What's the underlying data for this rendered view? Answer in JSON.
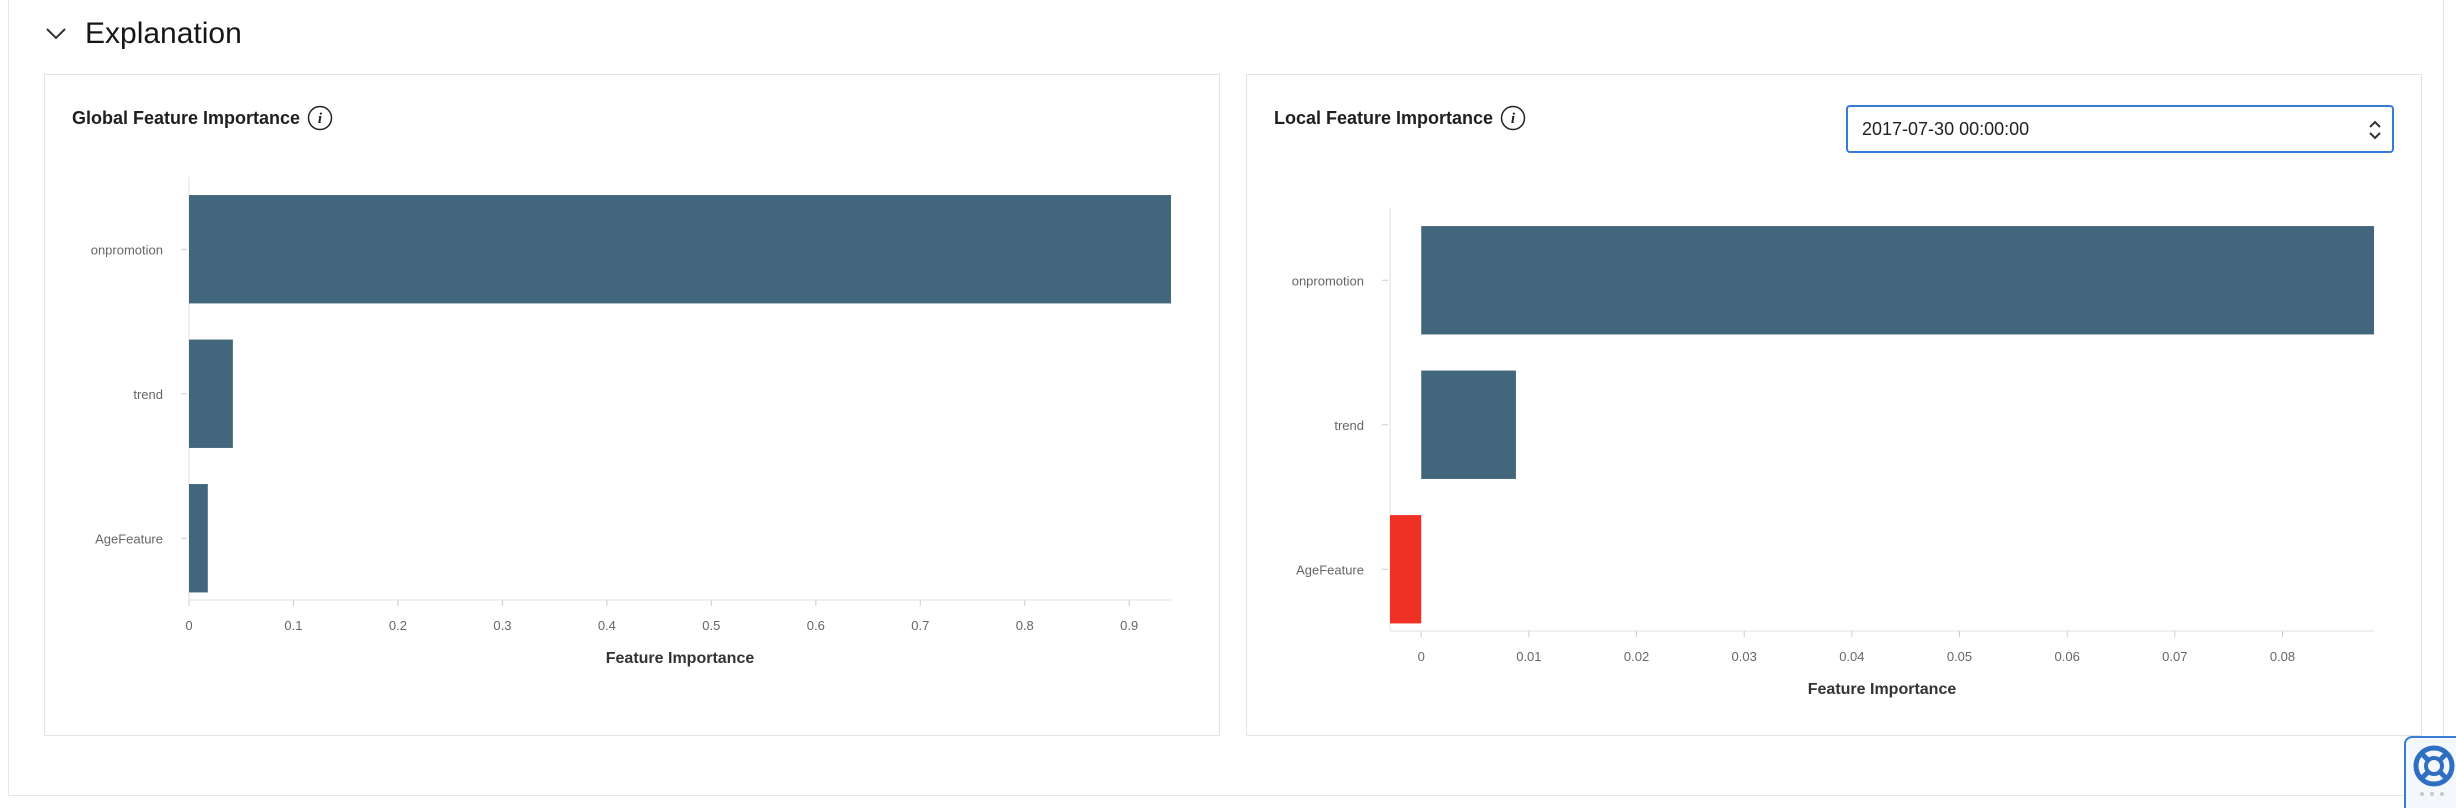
{
  "section": {
    "title": "Explanation",
    "icon": "chevron-down-icon"
  },
  "global_card": {
    "title": "Global Feature Importance",
    "icon": "info-icon"
  },
  "local_card": {
    "title": "Local Feature Importance",
    "icon": "info-icon",
    "timestamp_select": {
      "value": "2017-07-30 00:00:00",
      "icon": "select-arrows-icon"
    }
  },
  "colors": {
    "positive": "#42667b",
    "negative": "#ee3124",
    "select_border": "#3a7bd5"
  },
  "help_button": {
    "icon": "lifebuoy-icon"
  },
  "chart_data": [
    {
      "type": "bar",
      "orientation": "horizontal",
      "categories": [
        "onpromotion",
        "trend",
        "AgeFeature"
      ],
      "values": [
        0.94,
        0.042,
        0.018
      ],
      "xticks": [
        "0",
        "0.1",
        "0.2",
        "0.3",
        "0.4",
        "0.5",
        "0.6",
        "0.7",
        "0.8",
        "0.9"
      ],
      "xlim": [
        0,
        0.94
      ],
      "xlabel": "Feature Importance",
      "grid": false
    },
    {
      "type": "bar",
      "orientation": "horizontal",
      "categories": [
        "onpromotion",
        "trend",
        "AgeFeature"
      ],
      "values": [
        0.0885,
        0.0088,
        -0.0029
      ],
      "xticks": [
        "0",
        "0.01",
        "0.02",
        "0.03",
        "0.04",
        "0.05",
        "0.06",
        "0.07",
        "0.08"
      ],
      "xlim": [
        -0.0029,
        0.0885
      ],
      "xlabel": "Feature Importance",
      "grid": false
    }
  ]
}
